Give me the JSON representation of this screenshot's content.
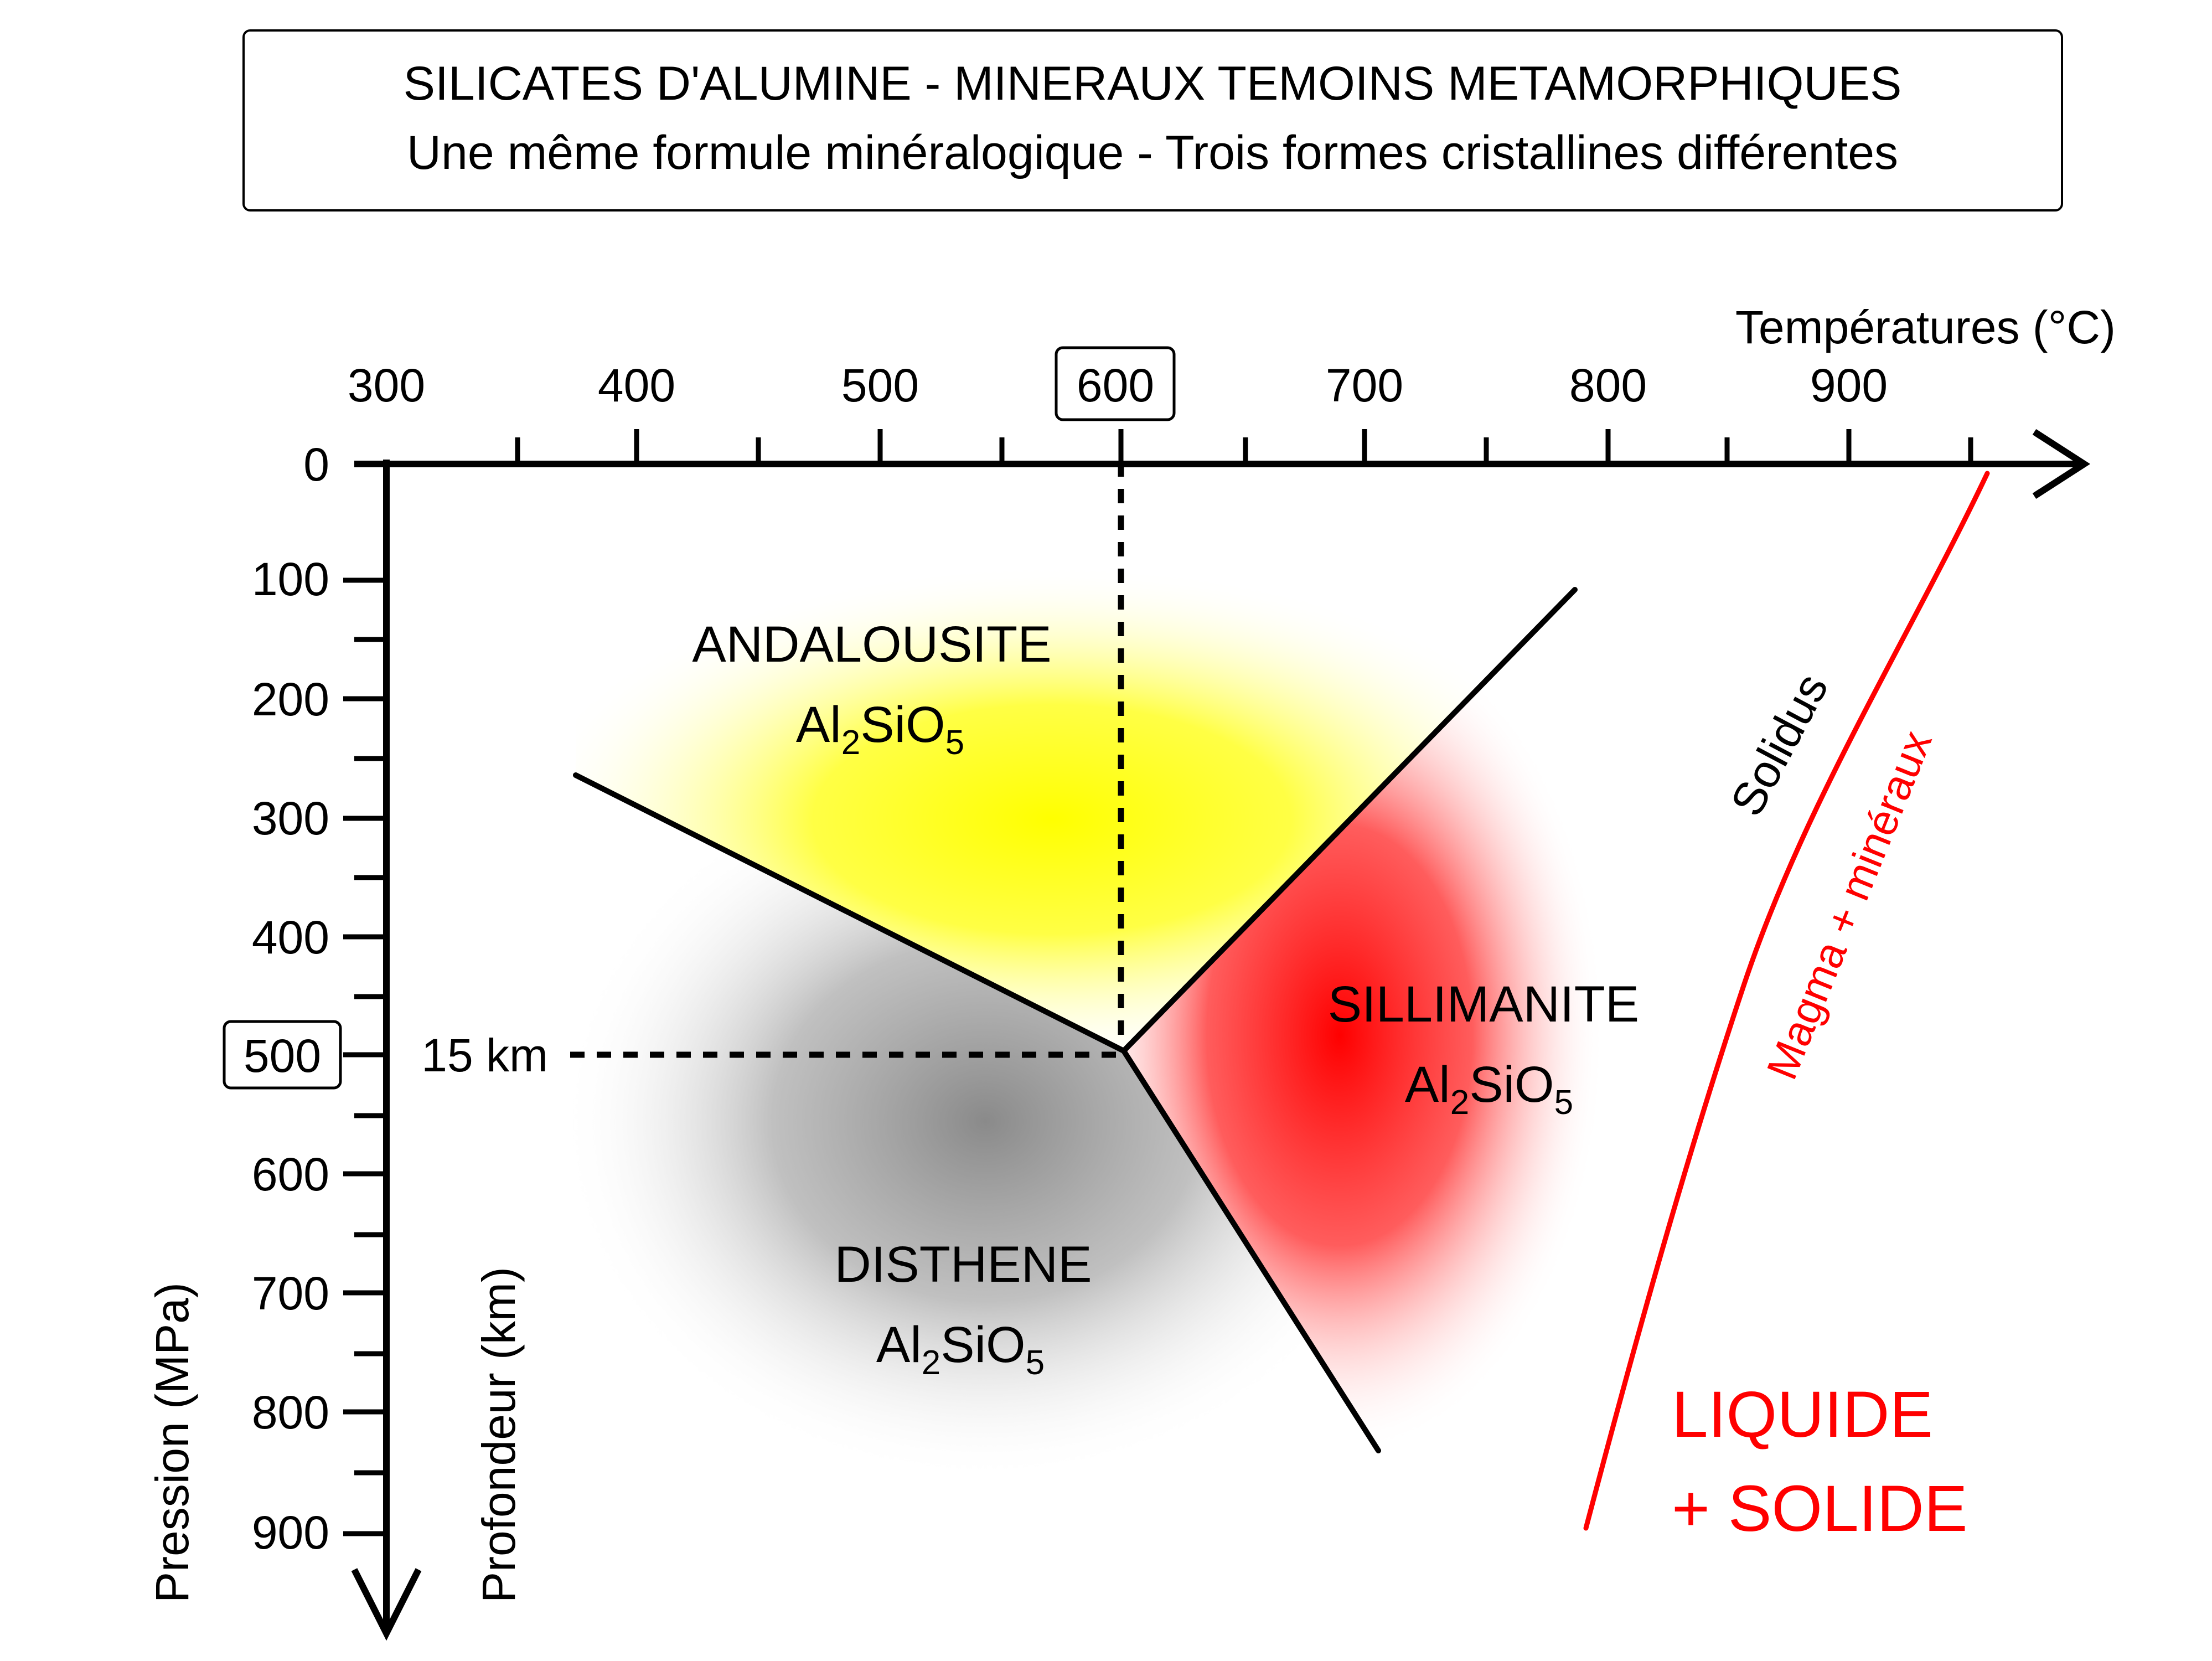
{
  "title": {
    "line1": "SILICATES D'ALUMINE - MINERAUX TEMOINS METAMORPHIQUES",
    "line2": "Une même formule minéralogique - Trois formes cristallines différentes"
  },
  "axes": {
    "x_title": "Températures (°C)",
    "y_title": "Pression (MPa)",
    "depth_title": "Profondeur (km)",
    "x_ticks": [
      "300",
      "400",
      "500",
      "600",
      "700",
      "800",
      "900"
    ],
    "y_ticks": [
      "0",
      "100",
      "200",
      "300",
      "400",
      "500",
      "600",
      "700",
      "800",
      "900"
    ],
    "highlighted_x": "600",
    "highlighted_y": "500",
    "depth_marker": "15 km"
  },
  "phases": {
    "andalousite": {
      "name": "ANDALOUSITE",
      "formula_main": "Al",
      "formula_sub1": "2",
      "formula_mid": "SiO",
      "formula_sub2": "5",
      "color": "#ffff00"
    },
    "sillimanite": {
      "name": "SILLIMANITE",
      "formula_main": "Al",
      "formula_sub1": "2",
      "formula_mid": "SiO",
      "formula_sub2": "5",
      "color": "#ff0000"
    },
    "disthene": {
      "name": "DISTHENE",
      "formula_main": "Al",
      "formula_sub1": "2",
      "formula_mid": "SiO",
      "formula_sub2": "5",
      "color": "#808080"
    }
  },
  "curves": {
    "solidus_label": "Solidus",
    "magma_label": "Magma + minéraux",
    "magma_color": "#ff0000"
  },
  "liquid_region": {
    "line1": "LIQUIDE",
    "line2": "+ SOLIDE",
    "color": "#ff0000"
  },
  "triple_point": {
    "temperature_c": 600,
    "pressure_mpa": 500
  }
}
